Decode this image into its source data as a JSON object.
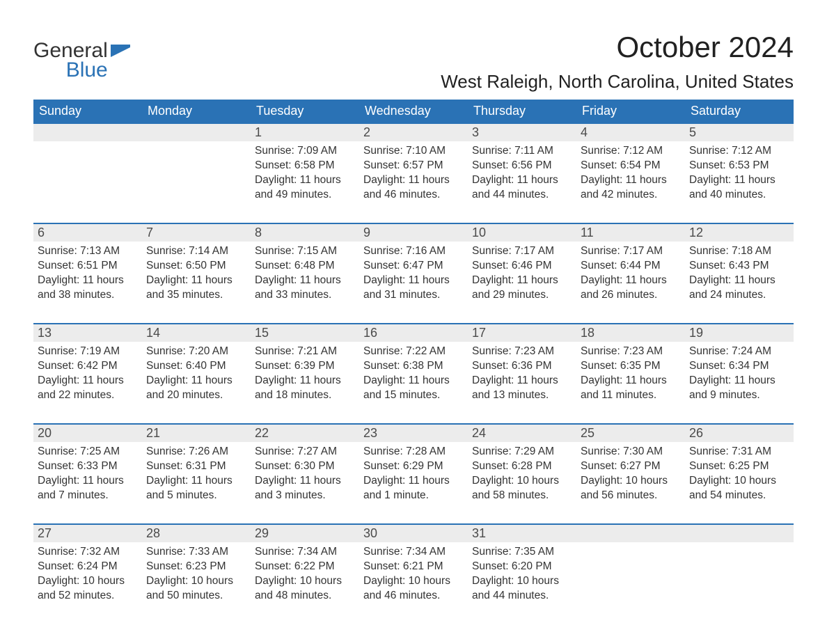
{
  "brand": {
    "part1": "General",
    "part2": "Blue"
  },
  "title": "October 2024",
  "location": "West Raleigh, North Carolina, United States",
  "colors": {
    "header_bg": "#2a72b5",
    "header_text": "#ffffff",
    "daynum_bg": "#ececec",
    "daynum_border": "#2a72b5",
    "body_text": "#333333",
    "page_bg": "#ffffff",
    "logo_icon": "#2a72b5"
  },
  "fonts": {
    "title_size_pt": 32,
    "location_size_pt": 20,
    "header_size_pt": 14,
    "body_size_pt": 12
  },
  "layout": {
    "columns": 7,
    "rows": 5,
    "first_weekday_index": 2
  },
  "weekdays": [
    "Sunday",
    "Monday",
    "Tuesday",
    "Wednesday",
    "Thursday",
    "Friday",
    "Saturday"
  ],
  "labels": {
    "sunrise": "Sunrise: ",
    "sunset": "Sunset: ",
    "daylight": "Daylight: "
  },
  "days": [
    {
      "n": 1,
      "sunrise": "7:09 AM",
      "sunset": "6:58 PM",
      "daylight": "11 hours and 49 minutes."
    },
    {
      "n": 2,
      "sunrise": "7:10 AM",
      "sunset": "6:57 PM",
      "daylight": "11 hours and 46 minutes."
    },
    {
      "n": 3,
      "sunrise": "7:11 AM",
      "sunset": "6:56 PM",
      "daylight": "11 hours and 44 minutes."
    },
    {
      "n": 4,
      "sunrise": "7:12 AM",
      "sunset": "6:54 PM",
      "daylight": "11 hours and 42 minutes."
    },
    {
      "n": 5,
      "sunrise": "7:12 AM",
      "sunset": "6:53 PM",
      "daylight": "11 hours and 40 minutes."
    },
    {
      "n": 6,
      "sunrise": "7:13 AM",
      "sunset": "6:51 PM",
      "daylight": "11 hours and 38 minutes."
    },
    {
      "n": 7,
      "sunrise": "7:14 AM",
      "sunset": "6:50 PM",
      "daylight": "11 hours and 35 minutes."
    },
    {
      "n": 8,
      "sunrise": "7:15 AM",
      "sunset": "6:48 PM",
      "daylight": "11 hours and 33 minutes."
    },
    {
      "n": 9,
      "sunrise": "7:16 AM",
      "sunset": "6:47 PM",
      "daylight": "11 hours and 31 minutes."
    },
    {
      "n": 10,
      "sunrise": "7:17 AM",
      "sunset": "6:46 PM",
      "daylight": "11 hours and 29 minutes."
    },
    {
      "n": 11,
      "sunrise": "7:17 AM",
      "sunset": "6:44 PM",
      "daylight": "11 hours and 26 minutes."
    },
    {
      "n": 12,
      "sunrise": "7:18 AM",
      "sunset": "6:43 PM",
      "daylight": "11 hours and 24 minutes."
    },
    {
      "n": 13,
      "sunrise": "7:19 AM",
      "sunset": "6:42 PM",
      "daylight": "11 hours and 22 minutes."
    },
    {
      "n": 14,
      "sunrise": "7:20 AM",
      "sunset": "6:40 PM",
      "daylight": "11 hours and 20 minutes."
    },
    {
      "n": 15,
      "sunrise": "7:21 AM",
      "sunset": "6:39 PM",
      "daylight": "11 hours and 18 minutes."
    },
    {
      "n": 16,
      "sunrise": "7:22 AM",
      "sunset": "6:38 PM",
      "daylight": "11 hours and 15 minutes."
    },
    {
      "n": 17,
      "sunrise": "7:23 AM",
      "sunset": "6:36 PM",
      "daylight": "11 hours and 13 minutes."
    },
    {
      "n": 18,
      "sunrise": "7:23 AM",
      "sunset": "6:35 PM",
      "daylight": "11 hours and 11 minutes."
    },
    {
      "n": 19,
      "sunrise": "7:24 AM",
      "sunset": "6:34 PM",
      "daylight": "11 hours and 9 minutes."
    },
    {
      "n": 20,
      "sunrise": "7:25 AM",
      "sunset": "6:33 PM",
      "daylight": "11 hours and 7 minutes."
    },
    {
      "n": 21,
      "sunrise": "7:26 AM",
      "sunset": "6:31 PM",
      "daylight": "11 hours and 5 minutes."
    },
    {
      "n": 22,
      "sunrise": "7:27 AM",
      "sunset": "6:30 PM",
      "daylight": "11 hours and 3 minutes."
    },
    {
      "n": 23,
      "sunrise": "7:28 AM",
      "sunset": "6:29 PM",
      "daylight": "11 hours and 1 minute."
    },
    {
      "n": 24,
      "sunrise": "7:29 AM",
      "sunset": "6:28 PM",
      "daylight": "10 hours and 58 minutes."
    },
    {
      "n": 25,
      "sunrise": "7:30 AM",
      "sunset": "6:27 PM",
      "daylight": "10 hours and 56 minutes."
    },
    {
      "n": 26,
      "sunrise": "7:31 AM",
      "sunset": "6:25 PM",
      "daylight": "10 hours and 54 minutes."
    },
    {
      "n": 27,
      "sunrise": "7:32 AM",
      "sunset": "6:24 PM",
      "daylight": "10 hours and 52 minutes."
    },
    {
      "n": 28,
      "sunrise": "7:33 AM",
      "sunset": "6:23 PM",
      "daylight": "10 hours and 50 minutes."
    },
    {
      "n": 29,
      "sunrise": "7:34 AM",
      "sunset": "6:22 PM",
      "daylight": "10 hours and 48 minutes."
    },
    {
      "n": 30,
      "sunrise": "7:34 AM",
      "sunset": "6:21 PM",
      "daylight": "10 hours and 46 minutes."
    },
    {
      "n": 31,
      "sunrise": "7:35 AM",
      "sunset": "6:20 PM",
      "daylight": "10 hours and 44 minutes."
    }
  ]
}
